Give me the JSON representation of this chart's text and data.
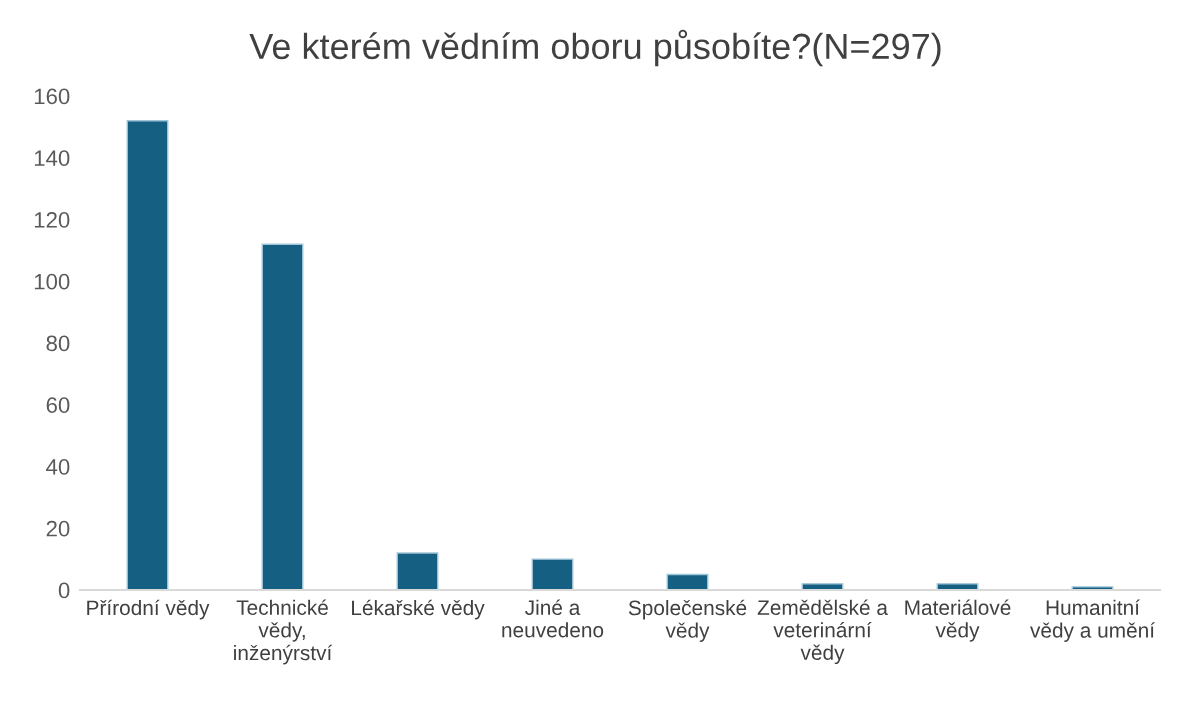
{
  "chart_data": {
    "type": "bar",
    "title": "Ve kterém vědním oboru působíte?(N=297)",
    "categories": [
      "Přírodní vědy",
      "Technické\nvědy,\ninženýrství",
      "Lékařské vědy",
      "Jiné a\nneuvedeno",
      "Společenské\nvědy",
      "Zemědělské a\nveterinární\nvědy",
      "Materiálové\nvědy",
      "Humanitní\nvědy a umění"
    ],
    "values": [
      152,
      112,
      12,
      10,
      5,
      2,
      2,
      1
    ],
    "color": "#156082",
    "ylim": [
      0,
      160
    ],
    "yticks": [
      0,
      20,
      40,
      60,
      80,
      100,
      120,
      140,
      160
    ],
    "grid": false
  }
}
